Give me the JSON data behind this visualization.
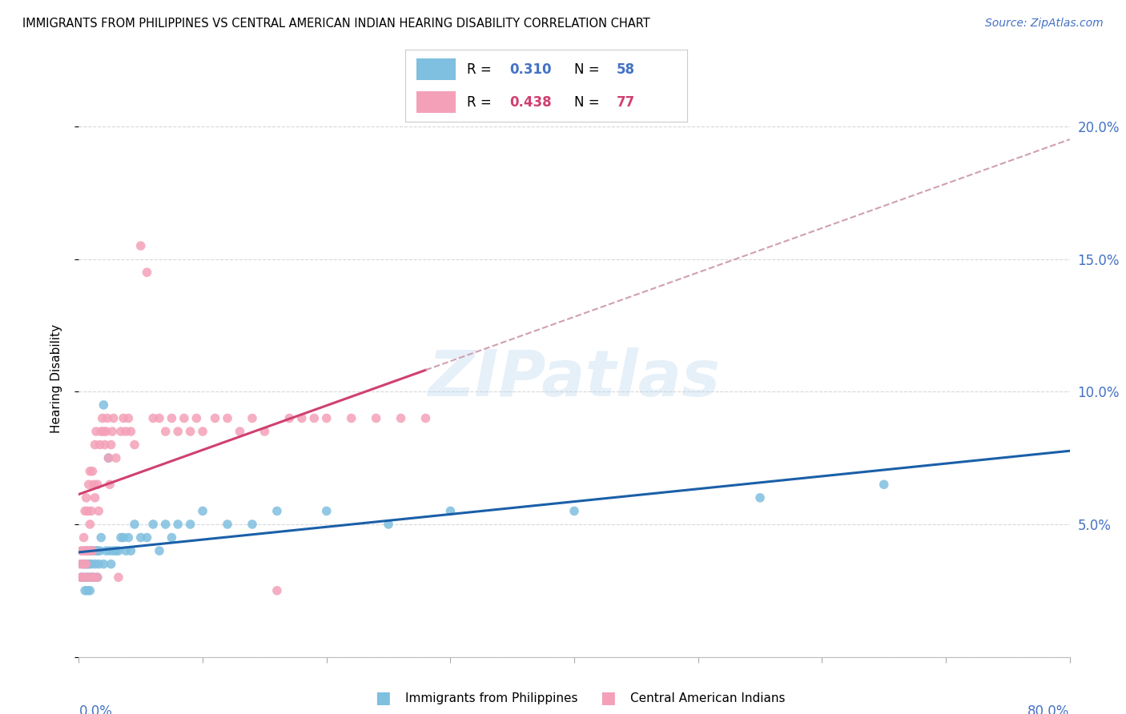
{
  "title": "IMMIGRANTS FROM PHILIPPINES VS CENTRAL AMERICAN INDIAN HEARING DISABILITY CORRELATION CHART",
  "source": "Source: ZipAtlas.com",
  "ylabel": "Hearing Disability",
  "y_ticks": [
    0.0,
    0.05,
    0.1,
    0.15,
    0.2
  ],
  "y_tick_labels": [
    "",
    "5.0%",
    "10.0%",
    "15.0%",
    "20.0%"
  ],
  "xlim": [
    0.0,
    0.8
  ],
  "ylim": [
    0.0,
    0.21
  ],
  "color_blue": "#7fbfdf",
  "color_pink": "#f4a0b8",
  "trendline_blue": "#1a5fa8",
  "trendline_pink": "#d04070",
  "trendline_dashed_color": "#d0a0b0",
  "watermark": "ZIPatlas",
  "blue_r": "0.310",
  "blue_n": "58",
  "pink_r": "0.438",
  "pink_n": "77",
  "blue_scatter_x": [
    0.002,
    0.003,
    0.004,
    0.005,
    0.005,
    0.006,
    0.006,
    0.007,
    0.007,
    0.008,
    0.008,
    0.009,
    0.009,
    0.01,
    0.01,
    0.01,
    0.012,
    0.012,
    0.013,
    0.014,
    0.015,
    0.015,
    0.016,
    0.017,
    0.018,
    0.02,
    0.02,
    0.022,
    0.024,
    0.025,
    0.026,
    0.028,
    0.03,
    0.032,
    0.034,
    0.036,
    0.038,
    0.04,
    0.042,
    0.045,
    0.05,
    0.055,
    0.06,
    0.065,
    0.07,
    0.075,
    0.08,
    0.09,
    0.1,
    0.12,
    0.14,
    0.16,
    0.2,
    0.25,
    0.3,
    0.4,
    0.55,
    0.65
  ],
  "blue_scatter_y": [
    0.03,
    0.035,
    0.03,
    0.025,
    0.035,
    0.03,
    0.04,
    0.025,
    0.035,
    0.03,
    0.035,
    0.025,
    0.04,
    0.03,
    0.04,
    0.035,
    0.03,
    0.04,
    0.035,
    0.04,
    0.03,
    0.04,
    0.035,
    0.04,
    0.045,
    0.035,
    0.095,
    0.04,
    0.075,
    0.04,
    0.035,
    0.04,
    0.04,
    0.04,
    0.045,
    0.045,
    0.04,
    0.045,
    0.04,
    0.05,
    0.045,
    0.045,
    0.05,
    0.04,
    0.05,
    0.045,
    0.05,
    0.05,
    0.055,
    0.05,
    0.05,
    0.055,
    0.055,
    0.05,
    0.055,
    0.055,
    0.06,
    0.065
  ],
  "pink_scatter_x": [
    0.001,
    0.002,
    0.002,
    0.003,
    0.003,
    0.004,
    0.004,
    0.005,
    0.005,
    0.006,
    0.006,
    0.006,
    0.007,
    0.007,
    0.007,
    0.008,
    0.008,
    0.009,
    0.009,
    0.01,
    0.01,
    0.01,
    0.011,
    0.011,
    0.012,
    0.012,
    0.013,
    0.013,
    0.014,
    0.015,
    0.015,
    0.016,
    0.017,
    0.018,
    0.019,
    0.02,
    0.021,
    0.022,
    0.023,
    0.024,
    0.025,
    0.026,
    0.027,
    0.028,
    0.03,
    0.032,
    0.034,
    0.036,
    0.038,
    0.04,
    0.042,
    0.045,
    0.05,
    0.055,
    0.06,
    0.065,
    0.07,
    0.075,
    0.08,
    0.085,
    0.09,
    0.095,
    0.1,
    0.11,
    0.12,
    0.13,
    0.14,
    0.15,
    0.16,
    0.17,
    0.18,
    0.19,
    0.2,
    0.22,
    0.24,
    0.26,
    0.28
  ],
  "pink_scatter_y": [
    0.035,
    0.03,
    0.04,
    0.03,
    0.04,
    0.035,
    0.045,
    0.04,
    0.055,
    0.035,
    0.04,
    0.06,
    0.03,
    0.04,
    0.055,
    0.04,
    0.065,
    0.05,
    0.07,
    0.03,
    0.04,
    0.055,
    0.04,
    0.07,
    0.03,
    0.065,
    0.06,
    0.08,
    0.085,
    0.03,
    0.065,
    0.055,
    0.08,
    0.085,
    0.09,
    0.085,
    0.08,
    0.085,
    0.09,
    0.075,
    0.065,
    0.08,
    0.085,
    0.09,
    0.075,
    0.03,
    0.085,
    0.09,
    0.085,
    0.09,
    0.085,
    0.08,
    0.155,
    0.145,
    0.09,
    0.09,
    0.085,
    0.09,
    0.085,
    0.09,
    0.085,
    0.09,
    0.085,
    0.09,
    0.09,
    0.085,
    0.09,
    0.085,
    0.025,
    0.09,
    0.09,
    0.09,
    0.09,
    0.09,
    0.09,
    0.09,
    0.09
  ]
}
